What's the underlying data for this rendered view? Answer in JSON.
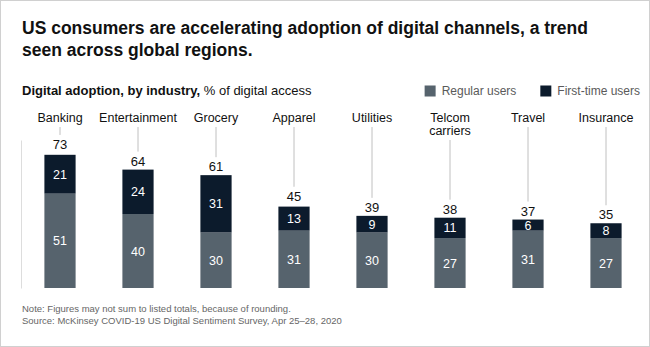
{
  "chart_data": {
    "type": "bar",
    "title": "US consumers are accelerating adoption of digital channels, a trend seen across global regions.",
    "subtitle": "Digital adoption, by industry, % of digital access",
    "categories": [
      "Banking",
      "Entertainment",
      "Grocery",
      "Apparel",
      "Utilities",
      "Telcom carriers",
      "Travel",
      "Insurance"
    ],
    "series": [
      {
        "name": "Regular users",
        "color": "#56636d",
        "values": [
          51,
          40,
          30,
          31,
          30,
          27,
          31,
          27
        ]
      },
      {
        "name": "First-time users",
        "color": "#0c1b2c",
        "values": [
          21,
          24,
          31,
          13,
          9,
          11,
          6,
          8
        ]
      }
    ],
    "totals": [
      73,
      64,
      61,
      45,
      39,
      38,
      37,
      35
    ],
    "ylim": [
      0,
      80
    ],
    "yticks": [],
    "stacked": true,
    "data_labels": true,
    "tick_labels": "x",
    "legend": "top-right",
    "note": "Note: Figures may not sum to listed totals, because of rounding.",
    "source": "Source: McKinsey COVID-19 US Digital Sentiment Survey, Apr 25–28, 2020"
  }
}
